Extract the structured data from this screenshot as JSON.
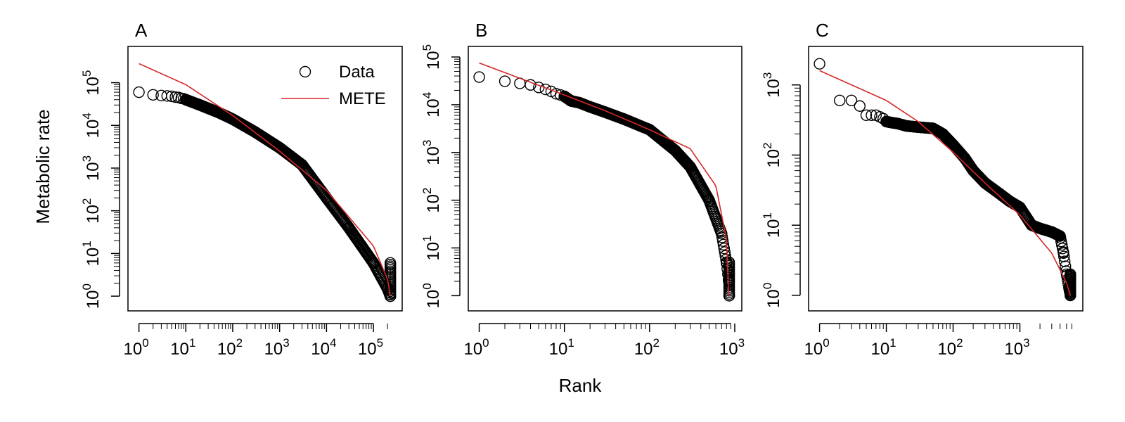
{
  "figure": {
    "xlabel": "Rank",
    "ylabel": "Metabolic rate",
    "colors": {
      "data": "#000000",
      "mete": "#d62728"
    },
    "legend": {
      "panel": "A",
      "placement": "top-right",
      "entries": [
        "Data",
        "METE"
      ]
    }
  },
  "chart_data": [
    {
      "panel": "A",
      "type": "scatter",
      "title": "A",
      "xscale": "log",
      "yscale": "log",
      "xlim": [
        1,
        240000
      ],
      "ylim": [
        0.8,
        400000
      ],
      "xticks": [
        1,
        10,
        100,
        1000,
        10000,
        100000
      ],
      "yticks": [
        1,
        10,
        100,
        1000,
        10000,
        100000
      ],
      "n_points": 230000,
      "series": [
        {
          "name": "Data",
          "kind": "points",
          "x": [
            1,
            2,
            3,
            4,
            5,
            6,
            7,
            8,
            9,
            10,
            20,
            50,
            100,
            300,
            1000,
            3000,
            10000,
            30000,
            100000,
            200000,
            230000
          ],
          "y": [
            60000,
            52000,
            50000,
            49000,
            48000,
            46000,
            45000,
            43000,
            42000,
            40000,
            30000,
            20000,
            14000,
            7000,
            3000,
            1200,
            200,
            40,
            6,
            1.5,
            1
          ]
        },
        {
          "name": "METE",
          "kind": "line",
          "x": [
            1,
            10,
            100,
            1000,
            10000,
            100000,
            200000,
            230000
          ],
          "y": [
            280000,
            90000,
            17000,
            2500,
            300,
            15,
            2.5,
            1
          ]
        }
      ]
    },
    {
      "panel": "B",
      "type": "scatter",
      "title": "B",
      "xscale": "log",
      "yscale": "log",
      "xlim": [
        1,
        900
      ],
      "ylim": [
        0.8,
        100000
      ],
      "xticks": [
        1,
        10,
        100,
        1000
      ],
      "yticks": [
        1,
        10,
        100,
        1000,
        10000,
        100000
      ],
      "n_points": 860,
      "series": [
        {
          "name": "Data",
          "kind": "points",
          "x": [
            1,
            2,
            3,
            4,
            5,
            6,
            7,
            8,
            9,
            10,
            12,
            15,
            20,
            30,
            50,
            100,
            200,
            300,
            500,
            700,
            800,
            850,
            860
          ],
          "y": [
            38000,
            31000,
            28000,
            26000,
            23000,
            21000,
            19000,
            17000,
            16000,
            15000,
            12000,
            11000,
            9000,
            7000,
            5000,
            3000,
            1100,
            500,
            100,
            20,
            5,
            2,
            1
          ]
        },
        {
          "name": "METE",
          "kind": "line",
          "x": [
            1,
            10,
            30,
            100,
            300,
            600,
            800,
            850
          ],
          "y": [
            75000,
            16000,
            7500,
            3000,
            1200,
            200,
            15,
            1
          ]
        }
      ]
    },
    {
      "panel": "C",
      "type": "scatter",
      "title": "C",
      "xscale": "log",
      "yscale": "log",
      "xlim": [
        1,
        6000
      ],
      "ylim": [
        0.85,
        2500
      ],
      "xticks": [
        1,
        10,
        100,
        1000
      ],
      "yticks": [
        1,
        10,
        100,
        1000
      ],
      "n_points": 5700,
      "series": [
        {
          "name": "Data",
          "kind": "points",
          "x": [
            1,
            2,
            3,
            4,
            5,
            6,
            7,
            8,
            9,
            10,
            12,
            15,
            20,
            30,
            50,
            70,
            100,
            150,
            200,
            300,
            500,
            700,
            1000,
            1500,
            2000,
            3000,
            4000,
            4500,
            5000,
            5500,
            5700
          ],
          "y": [
            2000,
            600,
            600,
            500,
            370,
            370,
            370,
            350,
            330,
            300,
            290,
            280,
            260,
            250,
            240,
            200,
            140,
            90,
            60,
            40,
            28,
            22,
            18,
            10,
            9,
            8,
            7,
            4,
            2,
            1.2,
            1
          ]
        },
        {
          "name": "METE",
          "kind": "line",
          "x": [
            1,
            10,
            30,
            100,
            300,
            1000,
            3000,
            5000,
            5700
          ],
          "y": [
            1600,
            600,
            300,
            110,
            40,
            14,
            4,
            1.5,
            1
          ]
        }
      ]
    }
  ]
}
